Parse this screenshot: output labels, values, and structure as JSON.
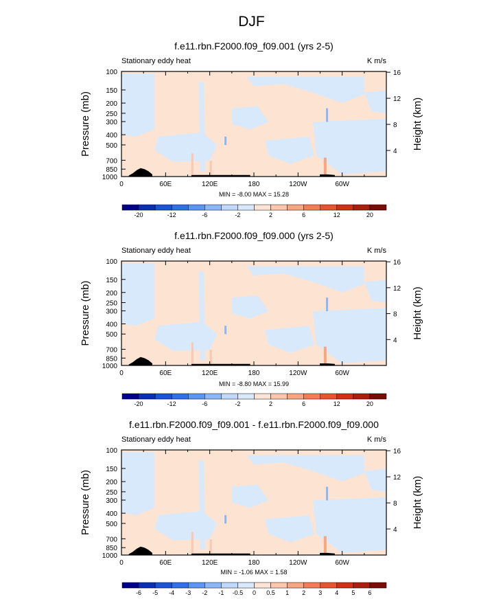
{
  "page": {
    "title": "DJF"
  },
  "palette": {
    "diff": [
      "#00008b",
      "#0a2fb4",
      "#1a53d6",
      "#2f6fe8",
      "#5b94f2",
      "#8cb7f7",
      "#bfd8fb",
      "#d8e8fd",
      "#fde3d3",
      "#fcc7ac",
      "#f8a581",
      "#f47d57",
      "#e8542f",
      "#d03013",
      "#a91e0c",
      "#7a0c05"
    ],
    "bg_neg": "#d9e9fc",
    "bg_pos": "#fde4d2",
    "topo": "#000000"
  },
  "chart_data": [
    {
      "type": "heatmap",
      "title": "f.e11.rbn.F2000.f09_f09.001 (yrs 2-5)",
      "left_label": "Stationary eddy heat",
      "units": "K m/s",
      "ylabel": "Pressure (mb)",
      "ylabel_right": "Height (km)",
      "xticks": [
        "0",
        "60E",
        "120E",
        "180",
        "120W",
        "60W"
      ],
      "yticks": [
        "100",
        "150",
        "200",
        "250",
        "300",
        "400",
        "500",
        "700",
        "850",
        "1000"
      ],
      "yticks_right": [
        "4",
        "8",
        "12",
        "16"
      ],
      "stats": "MIN =  -8.00  MAX =  15.28",
      "colorbar_labels": [
        "-20",
        "-12",
        "-6",
        "-2",
        "2",
        "6",
        "12",
        "20"
      ]
    },
    {
      "type": "heatmap",
      "title": "f.e11.rbn.F2000.f09_f09.000 (yrs 2-5)",
      "left_label": "Stationary eddy heat",
      "units": "K m/s",
      "ylabel": "Pressure (mb)",
      "ylabel_right": "Height (km)",
      "xticks": [
        "0",
        "60E",
        "120E",
        "180",
        "120W",
        "60W"
      ],
      "yticks": [
        "100",
        "150",
        "200",
        "250",
        "300",
        "400",
        "500",
        "700",
        "850",
        "1000"
      ],
      "yticks_right": [
        "4",
        "8",
        "12",
        "16"
      ],
      "stats": "MIN =  -8.80  MAX =  15.99",
      "colorbar_labels": [
        "-20",
        "-12",
        "-6",
        "-2",
        "2",
        "6",
        "12",
        "20"
      ]
    },
    {
      "type": "heatmap",
      "title": "f.e11.rbn.F2000.f09_f09.001 - f.e11.rbn.F2000.f09_f09.000",
      "left_label": "Stationary eddy heat",
      "units": "K m/s",
      "ylabel": "Pressure (mb)",
      "ylabel_right": "Height (km)",
      "xticks": [
        "0",
        "60E",
        "120E",
        "180",
        "120W",
        "60W"
      ],
      "yticks": [
        "100",
        "150",
        "200",
        "250",
        "300",
        "400",
        "500",
        "700",
        "850",
        "1000"
      ],
      "yticks_right": [
        "4",
        "8",
        "12",
        "16"
      ],
      "stats": "MIN =  -1.06  MAX =  1.58",
      "colorbar_labels": [
        "-6",
        "-5",
        "-4",
        "-3",
        "-2",
        "-1",
        "-0.5",
        "0",
        "0.5",
        "1",
        "2",
        "3",
        "4",
        "5",
        "6"
      ]
    }
  ]
}
